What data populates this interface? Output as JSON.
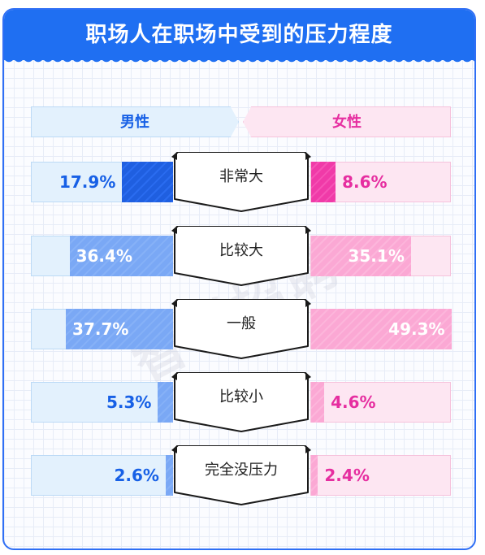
{
  "title": "职场人在职场中受到的压力程度",
  "watermark": "智联招聘",
  "chart_data": {
    "type": "bar",
    "title": "职场人在职场中受到的压力程度",
    "categories": [
      "非常大",
      "比较大",
      "一般",
      "比较小",
      "完全没压力"
    ],
    "series": [
      {
        "name": "男性",
        "values": [
          17.9,
          36.4,
          37.7,
          5.3,
          2.6
        ],
        "labels": [
          "17.9%",
          "36.4%",
          "37.7%",
          "5.3%",
          "2.6%"
        ],
        "color": "#1760e6"
      },
      {
        "name": "女性",
        "values": [
          8.6,
          35.1,
          49.3,
          4.6,
          2.4
        ],
        "labels": [
          "8.6%",
          "35.1%",
          "49.3%",
          "4.6%",
          "2.4%"
        ],
        "color": "#e62ea0"
      }
    ],
    "unit": "%",
    "legend": "top"
  },
  "colors": {
    "header": "#1f6ff2",
    "male_strong": "#1f5fe0",
    "male_light": "#7aa8f5",
    "female_strong": "#f03aa8",
    "female_light": "#fba8d4"
  }
}
